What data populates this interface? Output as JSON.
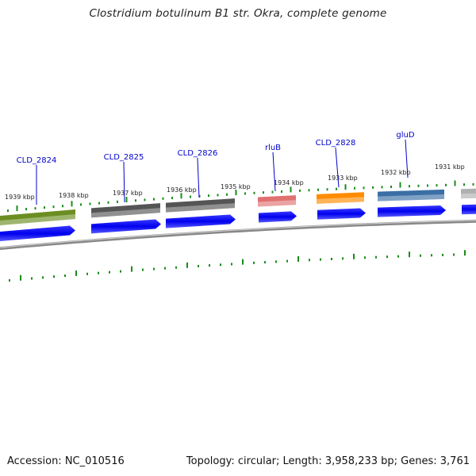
{
  "title": "Clostridium botulinum B1 str. Okra, complete genome",
  "footer": {
    "accession": "Accession: NC_010516",
    "summary": "Topology: circular; Length: 3,958,233 bp; Genes: 3,761"
  },
  "kbp_labels": [
    "1939 kbp",
    "1938 kbp",
    "1937 kbp",
    "1936 kbp",
    "1935 kbp",
    "1934 kbp",
    "1933 kbp",
    "1932 kbp",
    "1931 kbp"
  ],
  "gene_labels": [
    "CLD_2824",
    "CLD_2825",
    "CLD_2826",
    "rluB",
    "CLD_2828",
    "gluD"
  ],
  "colors": {
    "label": "#0000cc",
    "tick": "#1a8c1a",
    "cds": "#0000ee",
    "backbone": "#888888",
    "features": [
      "#6b8e23",
      "#555555",
      "#555555",
      "#e07070",
      "#ff8c00",
      "#3a6fa5",
      "#b0b0b0"
    ]
  }
}
